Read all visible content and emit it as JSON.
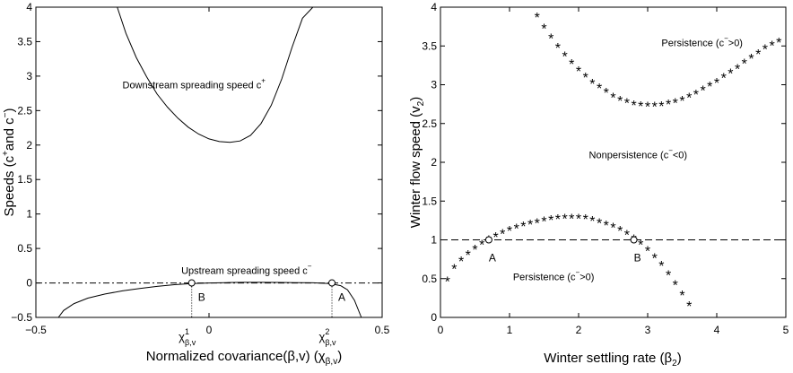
{
  "chart_data": [
    {
      "type": "line",
      "xlabel": "Normalized covariance(β,v) (χ",
      "xlabel_sub": "β,v",
      "xlabel_end": ")",
      "ylabel": "Speeds (c",
      "ylabel_sup1": "+",
      "ylabel_mid": "and c",
      "ylabel_sup2": "−",
      "ylabel_end": ")",
      "xlim": [
        -0.5,
        0.5
      ],
      "ylim": [
        -0.5,
        4
      ],
      "xticks": [
        -0.5,
        0,
        0.5
      ],
      "xtick_labels": [
        "−0.5",
        "0",
        "0.5"
      ],
      "yticks": [
        -0.5,
        0,
        0.5,
        1,
        1.5,
        2,
        2.5,
        3,
        3.5,
        4
      ],
      "ytick_labels": [
        "−0.5",
        "0",
        "0.5",
        "1",
        "1.5",
        "2",
        "2.5",
        "3",
        "3.5",
        "4"
      ],
      "grid": false,
      "series": [
        {
          "name": "Downstream spreading speed c+",
          "style": "solid",
          "x": [
            -0.265,
            -0.24,
            -0.21,
            -0.18,
            -0.15,
            -0.12,
            -0.09,
            -0.06,
            -0.03,
            0.0,
            0.03,
            0.06,
            0.09,
            0.12,
            0.15,
            0.18,
            0.21,
            0.24,
            0.27,
            0.3,
            0.31
          ],
          "y": [
            4.0,
            3.62,
            3.27,
            2.99,
            2.74,
            2.55,
            2.39,
            2.26,
            2.16,
            2.09,
            2.05,
            2.04,
            2.06,
            2.14,
            2.31,
            2.58,
            2.96,
            3.42,
            3.84,
            4.0,
            4.0
          ]
        },
        {
          "name": "Upstream spreading speed c−",
          "style": "solid",
          "x": [
            -0.435,
            -0.42,
            -0.39,
            -0.35,
            -0.3,
            -0.25,
            -0.2,
            -0.15,
            -0.1,
            -0.05,
            0.0,
            0.05,
            0.1,
            0.15,
            0.2,
            0.25,
            0.3,
            0.35,
            0.38,
            0.4,
            0.42,
            0.44
          ],
          "y": [
            -0.5,
            -0.4,
            -0.3,
            -0.22,
            -0.16,
            -0.115,
            -0.08,
            -0.05,
            -0.025,
            -0.01,
            0.0,
            0.005,
            0.008,
            0.008,
            0.007,
            0.005,
            0.002,
            -0.01,
            -0.04,
            -0.1,
            -0.25,
            -0.5
          ]
        },
        {
          "name": "zero reference",
          "style": "dashdot",
          "x": [
            -0.5,
            0.5
          ],
          "y": [
            0,
            0
          ]
        }
      ],
      "markers": [
        {
          "label": "B",
          "x": -0.05,
          "y": 0,
          "tick_label": "χ",
          "tick_sup": "1",
          "tick_sub": "β,v"
        },
        {
          "label": "A",
          "x": 0.355,
          "y": 0,
          "tick_label": "χ",
          "tick_sup": "2",
          "tick_sub": "β,v"
        }
      ],
      "annotations": [
        {
          "text": "Downstream spreading speed c",
          "sup": "+",
          "x": -0.25,
          "y": 2.82
        },
        {
          "text": "Upstream spreading speed c",
          "sup": "−",
          "x": -0.08,
          "y": 0.13
        }
      ]
    },
    {
      "type": "scatter",
      "xlabel": "Winter settling rate (β",
      "xlabel_sub": "2",
      "xlabel_end": ")",
      "ylabel": "Winter flow speed (v",
      "ylabel_sub": "2",
      "ylabel_end": ")",
      "xlim": [
        0,
        5
      ],
      "ylim": [
        0,
        4
      ],
      "xticks": [
        0,
        1,
        2,
        3,
        4,
        5
      ],
      "xtick_labels": [
        "0",
        "1",
        "2",
        "3",
        "4",
        "5"
      ],
      "yticks": [
        0,
        0.5,
        1,
        1.5,
        2,
        2.5,
        3,
        3.5,
        4
      ],
      "ytick_labels": [
        "0",
        "0.5",
        "1",
        "1.5",
        "2",
        "2.5",
        "3",
        "3.5",
        "4"
      ],
      "grid": false,
      "series": [
        {
          "name": "upper boundary",
          "marker": "*",
          "x": [
            1.4,
            1.5,
            1.6,
            1.7,
            1.8,
            1.9,
            2.0,
            2.1,
            2.2,
            2.3,
            2.4,
            2.5,
            2.6,
            2.7,
            2.8,
            2.9,
            3.0,
            3.1,
            3.2,
            3.3,
            3.4,
            3.5,
            3.6,
            3.7,
            3.8,
            3.9,
            4.0,
            4.1,
            4.2,
            4.3,
            4.4,
            4.5,
            4.6,
            4.7,
            4.8,
            4.9
          ],
          "y": [
            3.87,
            3.73,
            3.6,
            3.48,
            3.37,
            3.27,
            3.18,
            3.1,
            3.02,
            2.96,
            2.9,
            2.84,
            2.8,
            2.77,
            2.74,
            2.73,
            2.72,
            2.72,
            2.73,
            2.75,
            2.77,
            2.8,
            2.84,
            2.88,
            2.93,
            2.98,
            3.03,
            3.09,
            3.15,
            3.21,
            3.28,
            3.34,
            3.4,
            3.46,
            3.51,
            3.55
          ]
        },
        {
          "name": "lower boundary",
          "marker": "*",
          "x": [
            0.1,
            0.2,
            0.3,
            0.4,
            0.5,
            0.6,
            0.7,
            0.8,
            0.9,
            1.0,
            1.1,
            1.2,
            1.3,
            1.4,
            1.5,
            1.6,
            1.7,
            1.8,
            1.9,
            2.0,
            2.1,
            2.2,
            2.3,
            2.4,
            2.5,
            2.6,
            2.7,
            2.8,
            2.9,
            3.0,
            3.1,
            3.2,
            3.3,
            3.4,
            3.5,
            3.6
          ],
          "y": [
            0.47,
            0.63,
            0.73,
            0.81,
            0.88,
            0.94,
            1.0,
            1.04,
            1.08,
            1.12,
            1.15,
            1.18,
            1.2,
            1.22,
            1.24,
            1.26,
            1.27,
            1.28,
            1.28,
            1.28,
            1.27,
            1.25,
            1.22,
            1.19,
            1.16,
            1.12,
            1.07,
            1.01,
            0.94,
            0.86,
            0.77,
            0.67,
            0.55,
            0.42,
            0.29,
            0.15
          ]
        },
        {
          "name": "v2 = 1",
          "style": "dashed",
          "x": [
            0,
            5
          ],
          "y": [
            1,
            1
          ]
        }
      ],
      "markers": [
        {
          "label": "A",
          "x": 0.7,
          "y": 1.0
        },
        {
          "label": "B",
          "x": 2.8,
          "y": 1.0
        }
      ],
      "annotations": [
        {
          "text": "Persistence (c",
          "sup": "−",
          "end": ">0)",
          "x": 3.2,
          "y": 3.5
        },
        {
          "text": "Nonpersistence (c",
          "sup": "−",
          "end": "<0)",
          "x": 2.15,
          "y": 2.05
        },
        {
          "text": "Persistence (c",
          "sup": "−",
          "end": ">0)",
          "x": 1.05,
          "y": 0.48
        }
      ]
    }
  ]
}
